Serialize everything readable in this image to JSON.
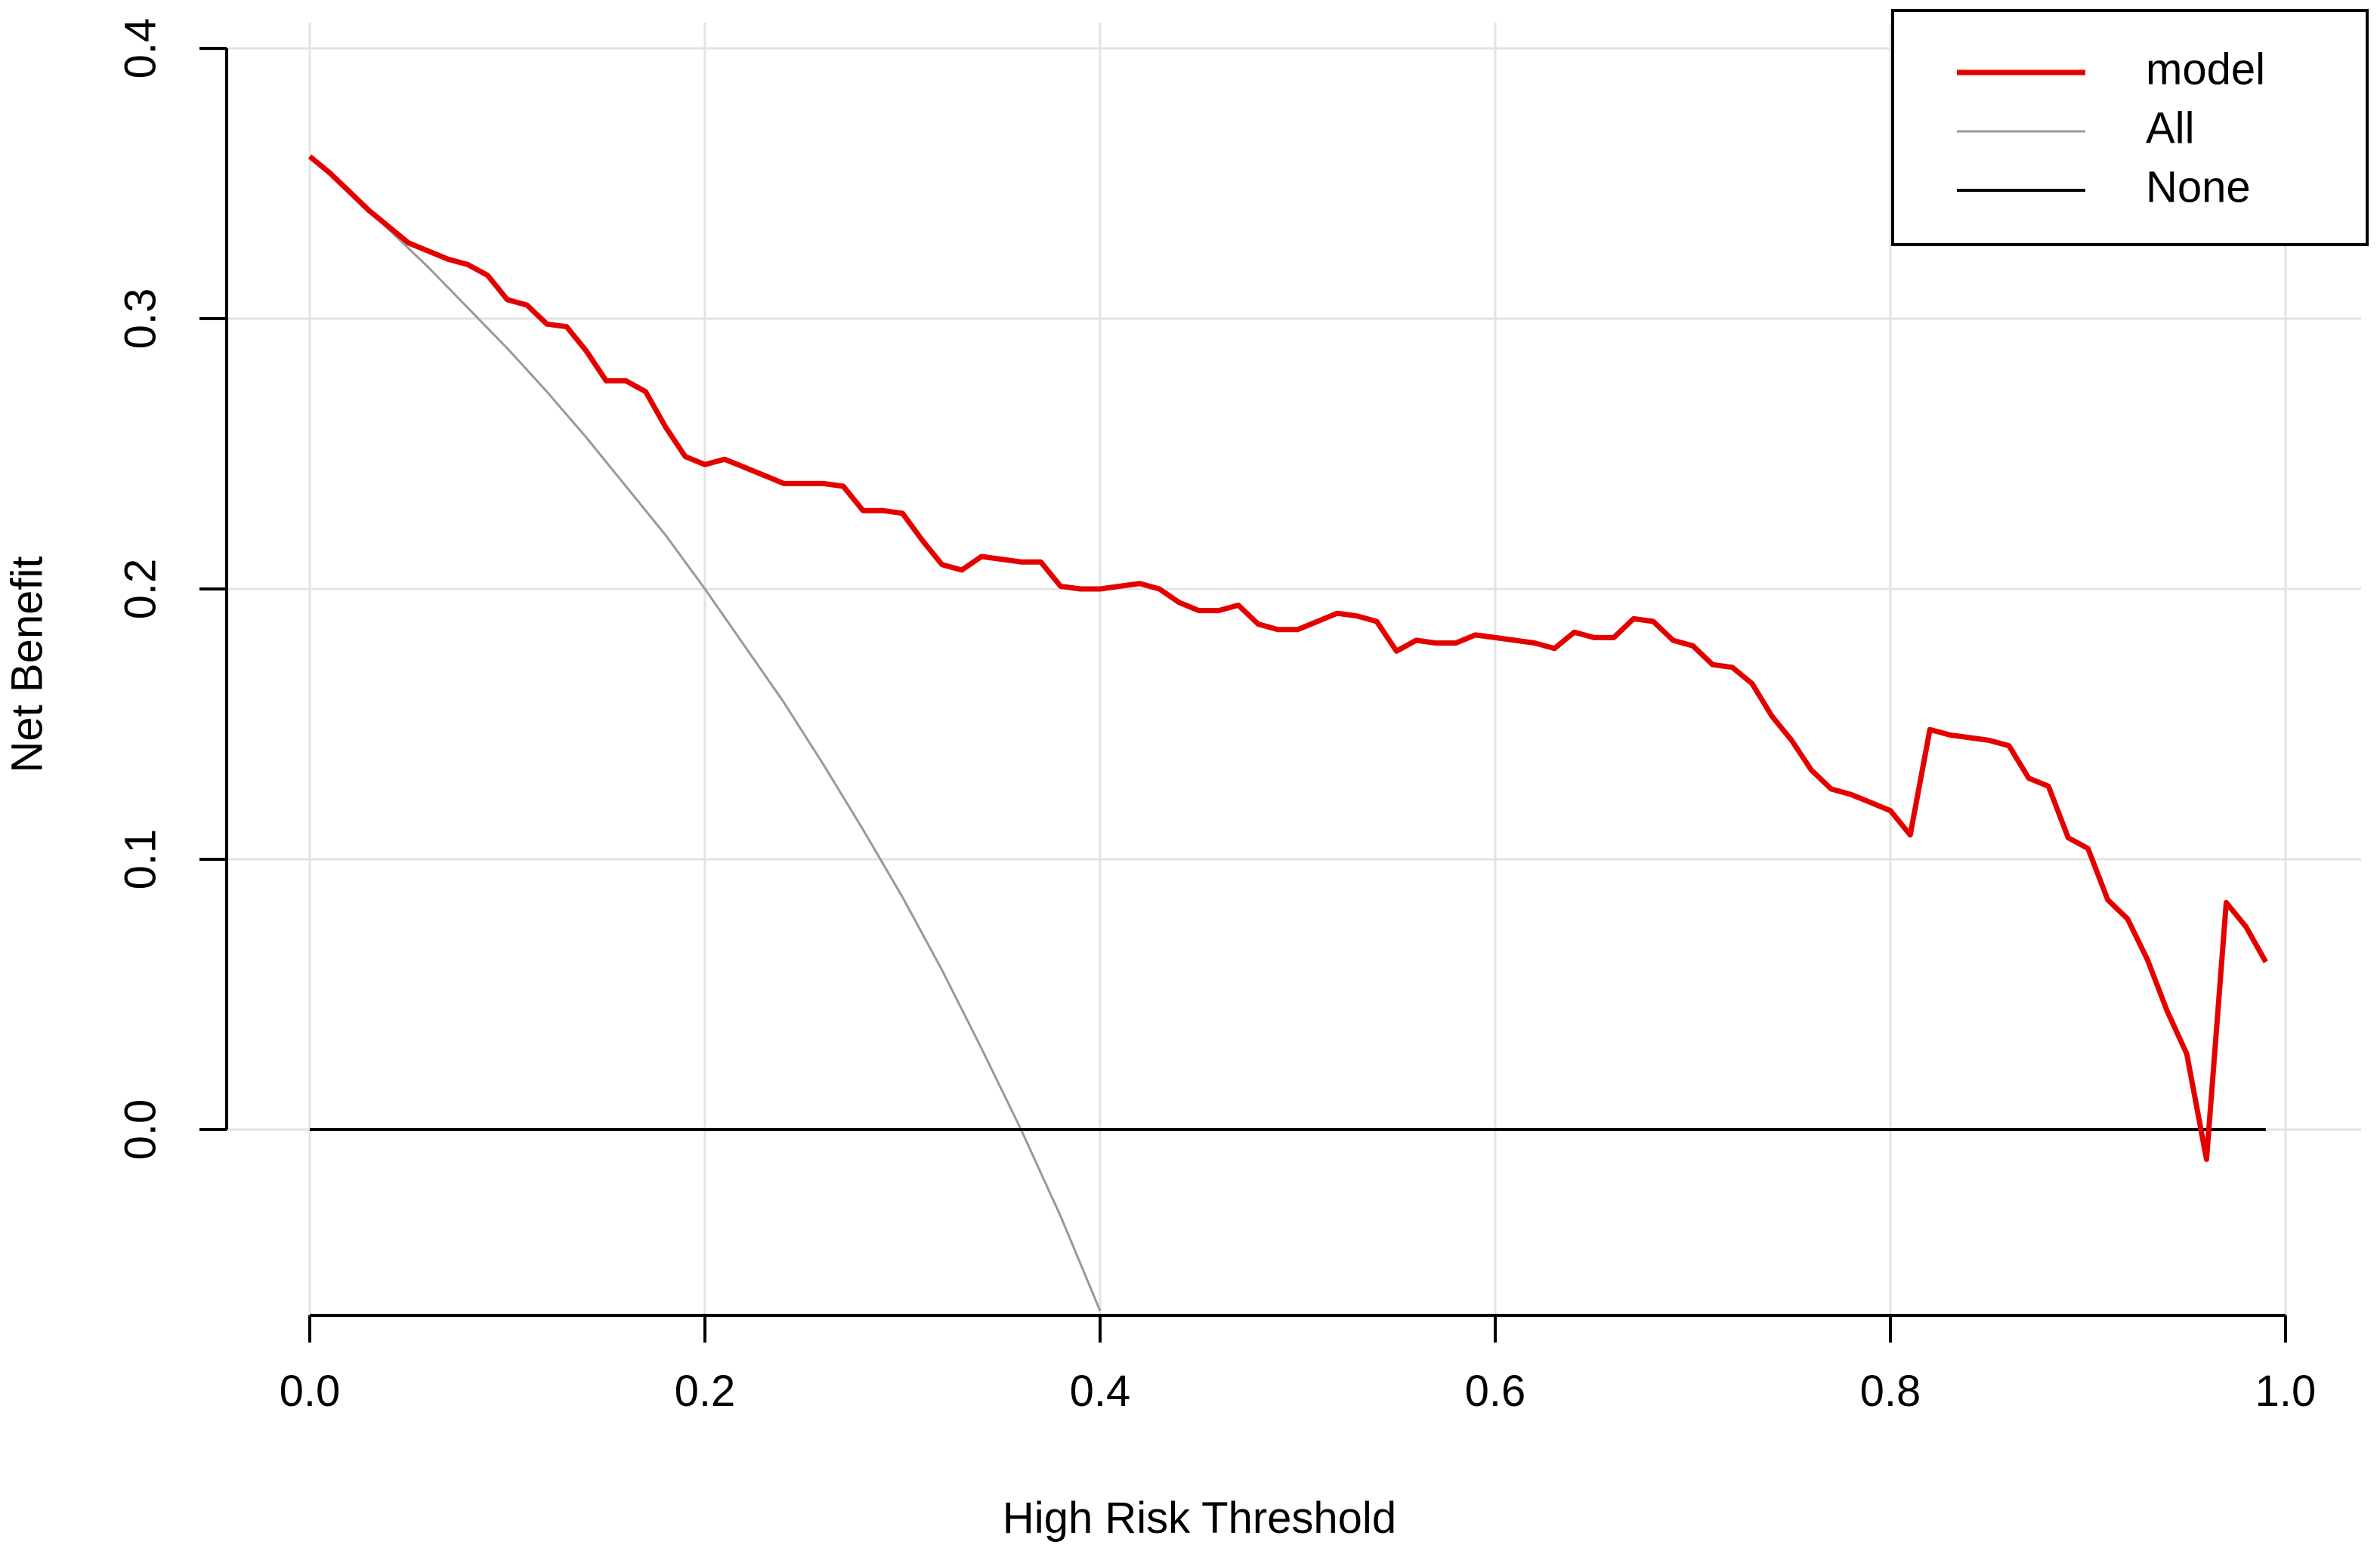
{
  "chart_data": {
    "type": "line",
    "title": "",
    "xlabel": "High Risk Threshold",
    "ylabel": "Net Benefit",
    "xlim": [
      0,
      1
    ],
    "ylim": [
      -0.07,
      0.4
    ],
    "x_ticks": [
      "0.0",
      "0.2",
      "0.4",
      "0.6",
      "0.8",
      "1.0"
    ],
    "y_ticks": [
      "0.0",
      "0.1",
      "0.2",
      "0.3",
      "0.4"
    ],
    "grid": true,
    "legend_position": "top-right",
    "series": [
      {
        "name": "model",
        "color": "#e50000",
        "x": [
          0.0,
          0.01,
          0.02,
          0.03,
          0.04,
          0.05,
          0.06,
          0.07,
          0.08,
          0.09,
          0.1,
          0.11,
          0.12,
          0.13,
          0.14,
          0.15,
          0.16,
          0.17,
          0.18,
          0.19,
          0.2,
          0.21,
          0.22,
          0.23,
          0.24,
          0.25,
          0.26,
          0.27,
          0.28,
          0.29,
          0.3,
          0.31,
          0.32,
          0.33,
          0.34,
          0.35,
          0.36,
          0.37,
          0.38,
          0.39,
          0.4,
          0.41,
          0.42,
          0.43,
          0.44,
          0.45,
          0.46,
          0.47,
          0.48,
          0.49,
          0.5,
          0.51,
          0.52,
          0.53,
          0.54,
          0.55,
          0.56,
          0.57,
          0.58,
          0.59,
          0.6,
          0.61,
          0.62,
          0.63,
          0.64,
          0.65,
          0.66,
          0.67,
          0.68,
          0.69,
          0.7,
          0.71,
          0.72,
          0.73,
          0.74,
          0.75,
          0.76,
          0.77,
          0.78,
          0.79,
          0.8,
          0.81,
          0.82,
          0.83,
          0.84,
          0.85,
          0.86,
          0.87,
          0.88,
          0.89,
          0.9,
          0.91,
          0.92,
          0.93,
          0.94,
          0.95,
          0.96,
          0.97,
          0.98,
          0.99
        ],
        "y": [
          0.36,
          0.354,
          0.347,
          0.34,
          0.334,
          0.328,
          0.325,
          0.322,
          0.32,
          0.316,
          0.307,
          0.305,
          0.298,
          0.297,
          0.288,
          0.277,
          0.277,
          0.273,
          0.26,
          0.249,
          0.246,
          0.248,
          0.245,
          0.242,
          0.239,
          0.239,
          0.239,
          0.238,
          0.229,
          0.229,
          0.228,
          0.218,
          0.209,
          0.207,
          0.212,
          0.211,
          0.21,
          0.21,
          0.201,
          0.2,
          0.2,
          0.201,
          0.202,
          0.2,
          0.195,
          0.192,
          0.192,
          0.194,
          0.187,
          0.185,
          0.185,
          0.188,
          0.191,
          0.19,
          0.188,
          0.177,
          0.181,
          0.18,
          0.18,
          0.183,
          0.182,
          0.181,
          0.18,
          0.178,
          0.184,
          0.182,
          0.182,
          0.189,
          0.188,
          0.181,
          0.179,
          0.172,
          0.171,
          0.165,
          0.153,
          0.144,
          0.133,
          0.126,
          0.124,
          0.121,
          0.118,
          0.109,
          0.148,
          0.146,
          0.145,
          0.144,
          0.142,
          0.13,
          0.127,
          0.108,
          0.104,
          0.085,
          0.078,
          0.063,
          0.044,
          0.028,
          -0.011,
          0.084,
          0.075,
          0.062
        ]
      },
      {
        "name": "All",
        "color": "#999999",
        "x": [
          0.0,
          0.02,
          0.04,
          0.06,
          0.08,
          0.1,
          0.12,
          0.14,
          0.16,
          0.18,
          0.2,
          0.22,
          0.24,
          0.26,
          0.28,
          0.3,
          0.32,
          0.34,
          0.36,
          0.38,
          0.4
        ],
        "y": [
          0.36,
          0.347,
          0.333,
          0.319,
          0.304,
          0.289,
          0.273,
          0.256,
          0.238,
          0.22,
          0.2,
          0.179,
          0.158,
          0.135,
          0.111,
          0.086,
          0.059,
          0.03,
          0.0,
          -0.032,
          -0.067
        ]
      },
      {
        "name": "None",
        "color": "#000000",
        "x": [
          0.0,
          0.99
        ],
        "y": [
          0.0,
          0.0
        ]
      }
    ]
  }
}
